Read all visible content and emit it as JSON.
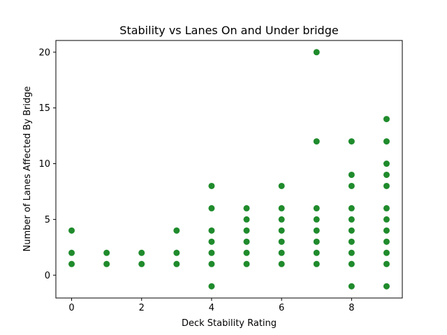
{
  "chart_data": {
    "type": "scatter",
    "title": "Stability vs Lanes On and Under bridge",
    "xlabel": "Deck Stability Rating",
    "ylabel": "Number of Lanes Affected By Bridge",
    "xlim": [
      -0.45,
      9.45
    ],
    "ylim": [
      -2.05,
      21.05
    ],
    "xticks": [
      0,
      2,
      4,
      6,
      8
    ],
    "yticks": [
      0,
      5,
      10,
      15,
      20
    ],
    "marker_color": "#1f8b2c",
    "grid": false,
    "legend": "none",
    "points": [
      {
        "x": 0,
        "y": 1
      },
      {
        "x": 0,
        "y": 2
      },
      {
        "x": 0,
        "y": 4
      },
      {
        "x": 1,
        "y": 1
      },
      {
        "x": 1,
        "y": 2
      },
      {
        "x": 2,
        "y": 1
      },
      {
        "x": 2,
        "y": 2
      },
      {
        "x": 3,
        "y": 1
      },
      {
        "x": 3,
        "y": 2
      },
      {
        "x": 3,
        "y": 4
      },
      {
        "x": 4,
        "y": -1
      },
      {
        "x": 4,
        "y": 1
      },
      {
        "x": 4,
        "y": 2
      },
      {
        "x": 4,
        "y": 3
      },
      {
        "x": 4,
        "y": 4
      },
      {
        "x": 4,
        "y": 6
      },
      {
        "x": 4,
        "y": 8
      },
      {
        "x": 5,
        "y": 1
      },
      {
        "x": 5,
        "y": 2
      },
      {
        "x": 5,
        "y": 3
      },
      {
        "x": 5,
        "y": 4
      },
      {
        "x": 5,
        "y": 5
      },
      {
        "x": 5,
        "y": 6
      },
      {
        "x": 6,
        "y": 1
      },
      {
        "x": 6,
        "y": 2
      },
      {
        "x": 6,
        "y": 3
      },
      {
        "x": 6,
        "y": 4
      },
      {
        "x": 6,
        "y": 5
      },
      {
        "x": 6,
        "y": 6
      },
      {
        "x": 6,
        "y": 8
      },
      {
        "x": 7,
        "y": 1
      },
      {
        "x": 7,
        "y": 2
      },
      {
        "x": 7,
        "y": 3
      },
      {
        "x": 7,
        "y": 4
      },
      {
        "x": 7,
        "y": 5
      },
      {
        "x": 7,
        "y": 6
      },
      {
        "x": 7,
        "y": 12
      },
      {
        "x": 7,
        "y": 20
      },
      {
        "x": 8,
        "y": -1
      },
      {
        "x": 8,
        "y": 1
      },
      {
        "x": 8,
        "y": 2
      },
      {
        "x": 8,
        "y": 3
      },
      {
        "x": 8,
        "y": 4
      },
      {
        "x": 8,
        "y": 5
      },
      {
        "x": 8,
        "y": 6
      },
      {
        "x": 8,
        "y": 8
      },
      {
        "x": 8,
        "y": 9
      },
      {
        "x": 8,
        "y": 12
      },
      {
        "x": 9,
        "y": -1
      },
      {
        "x": 9,
        "y": 1
      },
      {
        "x": 9,
        "y": 2
      },
      {
        "x": 9,
        "y": 3
      },
      {
        "x": 9,
        "y": 4
      },
      {
        "x": 9,
        "y": 5
      },
      {
        "x": 9,
        "y": 6
      },
      {
        "x": 9,
        "y": 8
      },
      {
        "x": 9,
        "y": 9
      },
      {
        "x": 9,
        "y": 10
      },
      {
        "x": 9,
        "y": 12
      },
      {
        "x": 9,
        "y": 14
      }
    ]
  }
}
